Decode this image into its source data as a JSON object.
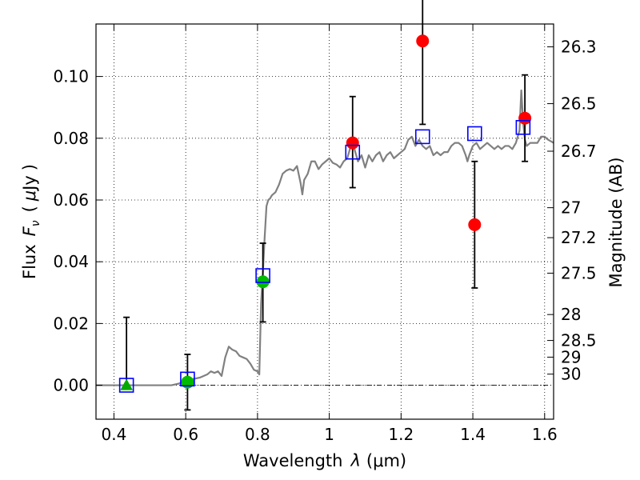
{
  "chart_data": {
    "type": "scatter",
    "title": "",
    "xlabel": {
      "prefix": "Wavelength",
      "symbol": "λ",
      "unit": "(μm)"
    },
    "ylabel": {
      "prefix": "Flux",
      "symbol": "F",
      "subscript": "ν",
      "unit_open": "(",
      "unit_mu": "μ",
      "unit_rest": "Jy",
      "unit_close": ")"
    },
    "y2label": "Magnitude (AB)",
    "xlim": [
      0.35,
      1.625
    ],
    "ylim": [
      -0.011,
      0.117
    ],
    "x_ticks": [
      0.4,
      0.6,
      0.8,
      1.0,
      1.2,
      1.4,
      1.6
    ],
    "x_tick_labels": [
      "0.4",
      "0.6",
      "0.8",
      "1",
      "1.2",
      "1.4",
      "1.6"
    ],
    "y_ticks": [
      0.0,
      0.02,
      0.04,
      0.06,
      0.08,
      0.1
    ],
    "y_tick_labels": [
      "0.00",
      "0.02",
      "0.04",
      "0.06",
      "0.08",
      "0.10"
    ],
    "y2_ticks": [
      {
        "label": "26.3",
        "flux": 0.1096
      },
      {
        "label": "26.5",
        "flux": 0.0912
      },
      {
        "label": "26.7",
        "flux": 0.0758
      },
      {
        "label": "27",
        "flux": 0.0575
      },
      {
        "label": "27.2",
        "flux": 0.0478
      },
      {
        "label": "27.5",
        "flux": 0.0363
      },
      {
        "label": "28",
        "flux": 0.0229
      },
      {
        "label": "28.5",
        "flux": 0.0145
      },
      {
        "label": "29",
        "flux": 0.0091
      },
      {
        "label": "30",
        "flux": 0.0036
      }
    ],
    "grid": true,
    "zero_line": true,
    "series": [
      {
        "kind": "line",
        "color": "#808080",
        "x": [
          0.35,
          0.56,
          0.58,
          0.6,
          0.62,
          0.64,
          0.66,
          0.67,
          0.68,
          0.69,
          0.7,
          0.71,
          0.72,
          0.73,
          0.74,
          0.75,
          0.76,
          0.77,
          0.78,
          0.79,
          0.8,
          0.805,
          0.81,
          0.815,
          0.82,
          0.825,
          0.83,
          0.835,
          0.84,
          0.85,
          0.86,
          0.87,
          0.88,
          0.89,
          0.9,
          0.91,
          0.92,
          0.925,
          0.93,
          0.94,
          0.95,
          0.96,
          0.97,
          0.98,
          0.99,
          1.0,
          1.01,
          1.02,
          1.03,
          1.04,
          1.05,
          1.06,
          1.07,
          1.08,
          1.09,
          1.1,
          1.11,
          1.12,
          1.13,
          1.14,
          1.15,
          1.16,
          1.17,
          1.18,
          1.19,
          1.2,
          1.21,
          1.22,
          1.23,
          1.24,
          1.25,
          1.26,
          1.27,
          1.28,
          1.29,
          1.3,
          1.31,
          1.32,
          1.33,
          1.34,
          1.35,
          1.36,
          1.37,
          1.38,
          1.385,
          1.39,
          1.4,
          1.41,
          1.42,
          1.43,
          1.44,
          1.45,
          1.46,
          1.47,
          1.48,
          1.49,
          1.5,
          1.51,
          1.52,
          1.53,
          1.535,
          1.54,
          1.545,
          1.55,
          1.56,
          1.57,
          1.58,
          1.59,
          1.6,
          1.61,
          1.625
        ],
        "y": [
          0.0,
          0.0,
          0.0005,
          0.0015,
          0.002,
          0.0025,
          0.0035,
          0.0045,
          0.004,
          0.0045,
          0.003,
          0.009,
          0.0125,
          0.0115,
          0.011,
          0.0095,
          0.009,
          0.0085,
          0.007,
          0.005,
          0.0045,
          0.0035,
          0.0265,
          0.0365,
          0.048,
          0.058,
          0.06,
          0.0605,
          0.0615,
          0.0625,
          0.065,
          0.0685,
          0.0695,
          0.07,
          0.0695,
          0.071,
          0.0655,
          0.0618,
          0.0665,
          0.0685,
          0.0725,
          0.0725,
          0.07,
          0.0715,
          0.0725,
          0.0735,
          0.072,
          0.0715,
          0.0705,
          0.0725,
          0.0735,
          0.0775,
          0.0765,
          0.0725,
          0.0745,
          0.0705,
          0.0745,
          0.0725,
          0.0745,
          0.0755,
          0.0725,
          0.0745,
          0.0755,
          0.0735,
          0.0745,
          0.0755,
          0.0765,
          0.0795,
          0.0805,
          0.0775,
          0.0795,
          0.0775,
          0.0765,
          0.0775,
          0.0745,
          0.0755,
          0.0745,
          0.0755,
          0.0755,
          0.0775,
          0.0785,
          0.0785,
          0.0775,
          0.0745,
          0.0725,
          0.0745,
          0.0775,
          0.0785,
          0.0765,
          0.0775,
          0.0785,
          0.0775,
          0.0765,
          0.0775,
          0.0765,
          0.0775,
          0.0775,
          0.0765,
          0.0785,
          0.0825,
          0.0955,
          0.0855,
          0.0795,
          0.0775,
          0.0785,
          0.0785,
          0.0785,
          0.0805,
          0.0805,
          0.0795,
          0.0785
        ]
      },
      {
        "kind": "model-photometry",
        "marker": "open-square",
        "color": "#0000ff",
        "x": [
          0.435,
          0.605,
          0.815,
          1.065,
          1.26,
          1.405,
          1.54
        ],
        "y": [
          0.0,
          0.002,
          0.0355,
          0.0755,
          0.0805,
          0.0815,
          0.0835
        ]
      },
      {
        "kind": "upper-limit",
        "marker": "triangle",
        "color": "#00aa00",
        "x": [
          0.435
        ],
        "y": [
          0.0
        ],
        "yerr_low": [
          0.0
        ],
        "yerr_high": [
          0.022
        ]
      },
      {
        "kind": "detection",
        "marker": "circle",
        "color": "#00bb00",
        "x": [
          0.605,
          0.815
        ],
        "y": [
          0.001,
          0.0335
        ],
        "yerr_low": [
          0.009,
          0.013
        ],
        "yerr_high": [
          0.009,
          0.0125
        ]
      },
      {
        "kind": "detection",
        "marker": "circle",
        "color": "#ff0000",
        "x": [
          1.065,
          1.26,
          1.405,
          1.545
        ],
        "y": [
          0.0785,
          0.1115,
          0.052,
          0.0865
        ],
        "yerr_low": [
          0.0145,
          0.027,
          0.0205,
          0.014
        ],
        "yerr_high": [
          0.015,
          0.027,
          0.0205,
          0.014
        ]
      }
    ]
  }
}
